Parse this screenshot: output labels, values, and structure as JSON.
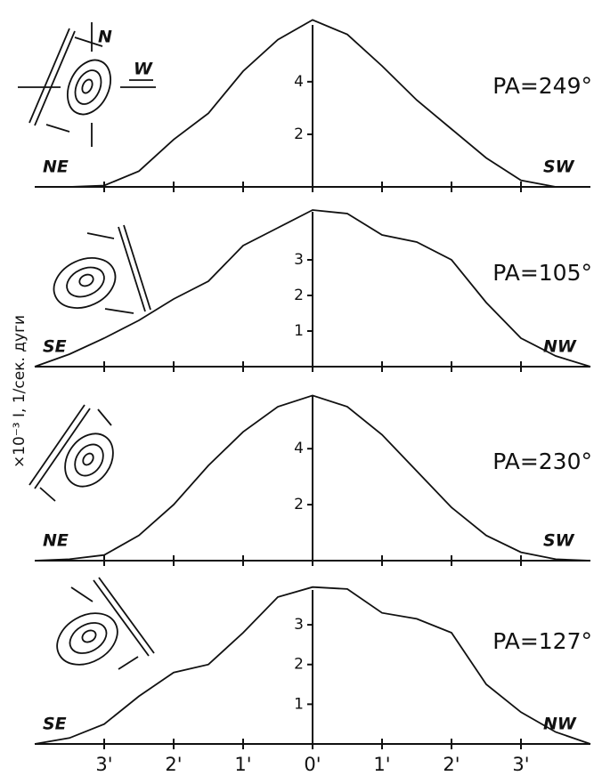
{
  "y_label": "×10⁻³ I, 1/сек. дуги",
  "chart_data": [
    {
      "type": "line",
      "left_label": "NE",
      "right_label": "SW",
      "title": "PA=249°",
      "compass": [
        "N",
        "W"
      ],
      "x": [
        -4,
        -3.5,
        -3,
        -2.5,
        -2,
        -1.5,
        -1,
        -0.5,
        0,
        0.5,
        1,
        1.5,
        2,
        2.5,
        3,
        3.5,
        4
      ],
      "series": [
        {
          "color": "#111111",
          "values": [
            0,
            0,
            0.05,
            0.6,
            1.8,
            2.8,
            4.4,
            5.6,
            6.35,
            5.8,
            4.6,
            3.3,
            2.2,
            1.1,
            0.25,
            0,
            0
          ]
        }
      ],
      "xlim": [
        -4,
        4
      ],
      "xticks": [
        -3,
        -2,
        -1,
        0,
        1,
        2,
        3
      ],
      "ylim": [
        0,
        6.5
      ],
      "yticks": [
        2,
        4
      ]
    },
    {
      "type": "line",
      "left_label": "SE",
      "right_label": "NW",
      "title": "PA=105°",
      "x": [
        -4,
        -3.5,
        -3,
        -2.5,
        -2,
        -1.5,
        -1,
        -0.5,
        0,
        0.5,
        1,
        1.5,
        2,
        2.5,
        3,
        3.5,
        4
      ],
      "series": [
        {
          "color": "#111111",
          "values": [
            0,
            0.35,
            0.8,
            1.3,
            1.9,
            2.4,
            3.4,
            3.9,
            4.4,
            4.3,
            3.7,
            3.5,
            3.0,
            1.8,
            0.8,
            0.3,
            0
          ]
        }
      ],
      "xlim": [
        -4,
        4
      ],
      "xticks": [
        -3,
        -2,
        -1,
        0,
        1,
        2,
        3
      ],
      "ylim": [
        0,
        4.6
      ],
      "yticks": [
        1,
        2,
        3
      ]
    },
    {
      "type": "line",
      "left_label": "NE",
      "right_label": "SW",
      "title": "PA=230°",
      "x": [
        -4,
        -3.5,
        -3,
        -2.5,
        -2,
        -1.5,
        -1,
        -0.5,
        0,
        0.5,
        1,
        1.5,
        2,
        2.5,
        3,
        3.5,
        4
      ],
      "series": [
        {
          "color": "#111111",
          "values": [
            0,
            0.05,
            0.2,
            0.9,
            2.0,
            3.4,
            4.6,
            5.5,
            5.9,
            5.5,
            4.5,
            3.2,
            1.9,
            0.9,
            0.3,
            0.05,
            0
          ]
        }
      ],
      "xlim": [
        -4,
        4
      ],
      "xticks": [
        -3,
        -2,
        -1,
        0,
        1,
        2,
        3
      ],
      "ylim": [
        0,
        6.2
      ],
      "yticks": [
        2,
        4
      ]
    },
    {
      "type": "line",
      "left_label": "SE",
      "right_label": "NW",
      "title": "PA=127°",
      "x": [
        -4,
        -3.5,
        -3,
        -2.5,
        -2,
        -1.5,
        -1,
        -0.5,
        0,
        0.5,
        1,
        1.5,
        2,
        2.5,
        3,
        3.5,
        4
      ],
      "series": [
        {
          "color": "#111111",
          "values": [
            0,
            0.15,
            0.5,
            1.2,
            1.8,
            2.0,
            2.8,
            3.7,
            3.95,
            3.9,
            3.3,
            3.15,
            2.8,
            1.5,
            0.8,
            0.3,
            0
          ]
        }
      ],
      "xlim": [
        -4,
        4
      ],
      "xticks": [
        {
          "value": -3,
          "label": "3'"
        },
        {
          "value": -2,
          "label": "2'"
        },
        {
          "value": -1,
          "label": "1'"
        },
        {
          "value": 0,
          "label": "0'"
        },
        {
          "value": 1,
          "label": "1'"
        },
        {
          "value": 2,
          "label": "2'"
        },
        {
          "value": 3,
          "label": "3'"
        }
      ],
      "ylim": [
        0,
        4.1
      ],
      "yticks": [
        1,
        2,
        3
      ]
    }
  ]
}
